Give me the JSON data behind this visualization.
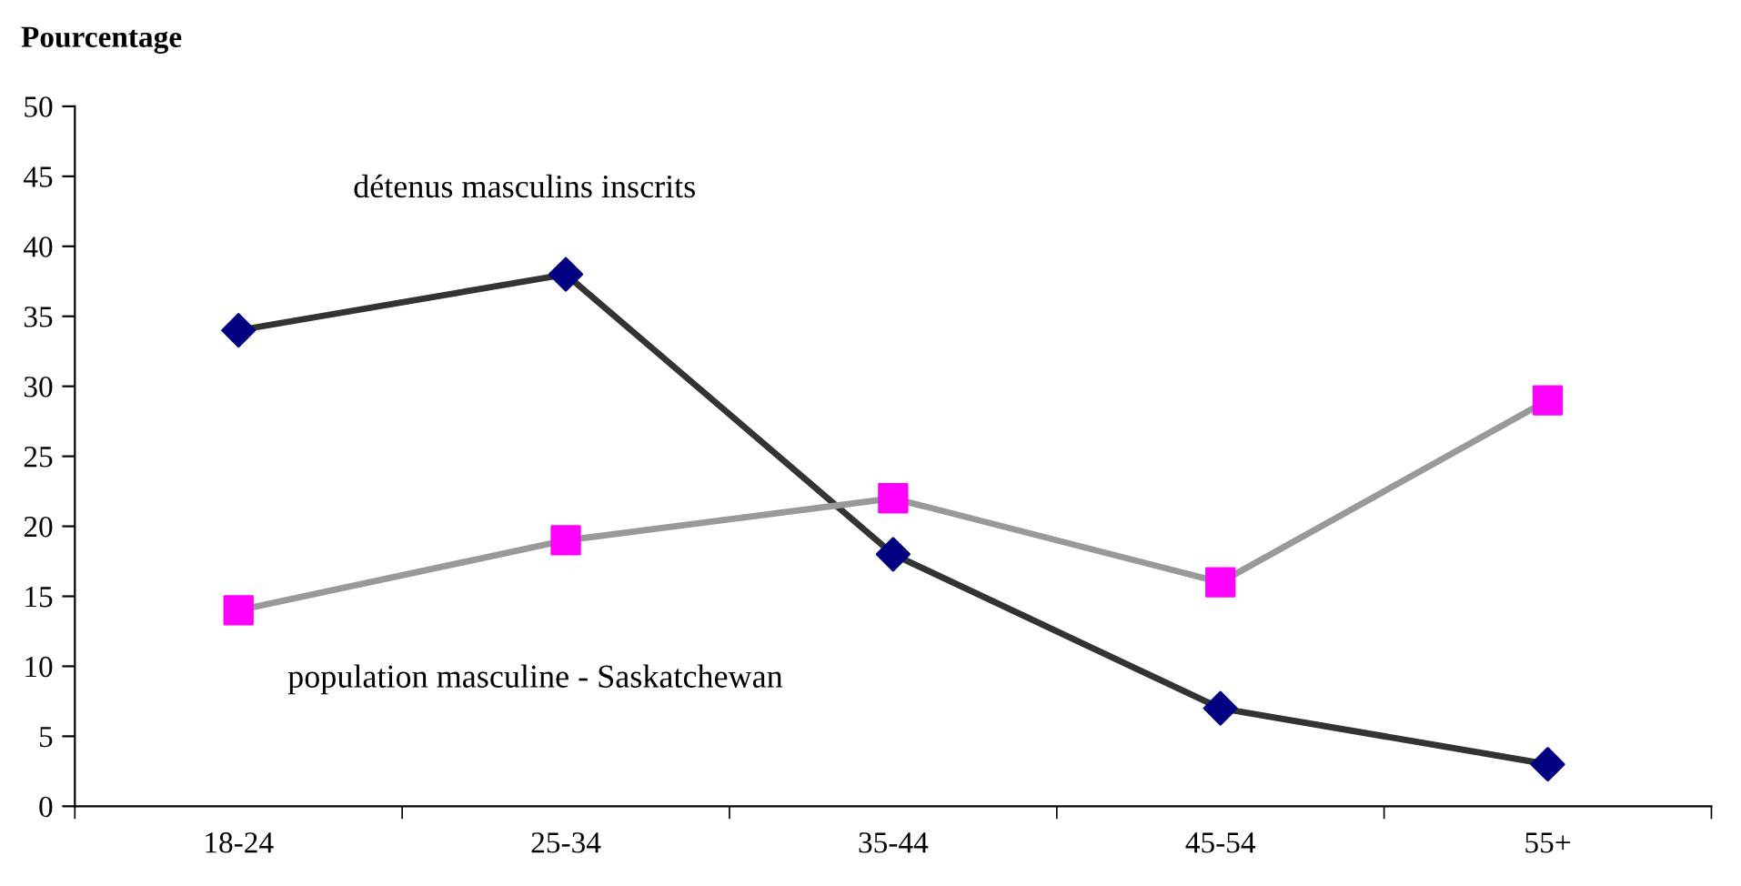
{
  "chart_data": {
    "type": "line",
    "ylabel": "Pourcentage",
    "categories": [
      "18-24",
      "25-34",
      "35-44",
      "45-54",
      "55+"
    ],
    "series": [
      {
        "name": "détenus masculins inscrits",
        "color": "#333333",
        "colors": [
          "#000080",
          "#000080",
          "#000080",
          "#000080",
          "#000080"
        ],
        "marker": "diamond",
        "values": [
          34,
          38,
          18,
          7,
          3
        ]
      },
      {
        "name": "population masculine - Saskatchewan",
        "color": "#999999",
        "colors": [
          "#ff00ff",
          "#ff00ff",
          "#ff00ff",
          "#ff00ff",
          "#ff00ff"
        ],
        "marker": "square",
        "values": [
          14,
          19,
          22,
          16,
          29
        ]
      }
    ],
    "ylim": [
      0,
      50
    ],
    "yticks": [
      0,
      5,
      10,
      15,
      20,
      25,
      30,
      35,
      40,
      45,
      50
    ],
    "grid": false,
    "legend": false,
    "line_style": "solid"
  }
}
